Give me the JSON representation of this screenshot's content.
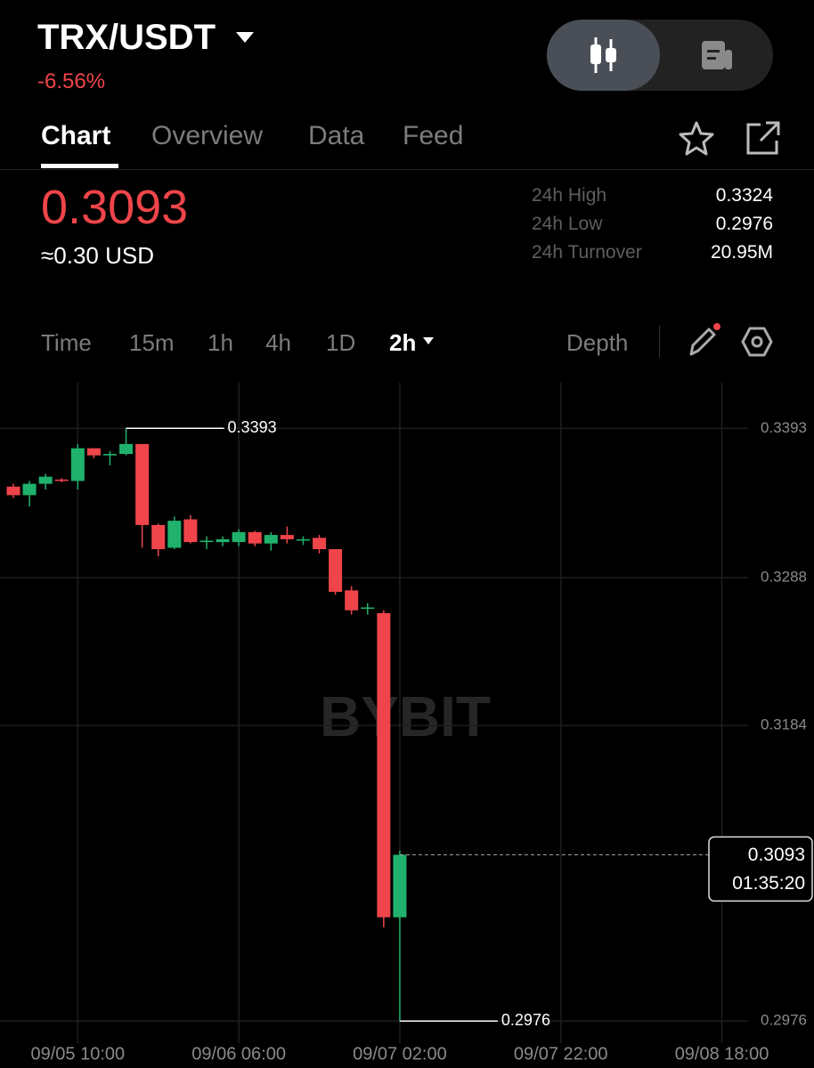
{
  "header": {
    "pair": "TRX/USDT",
    "change": "-6.56%"
  },
  "tabs": [
    "Chart",
    "Overview",
    "Data",
    "Feed"
  ],
  "ticker": {
    "price": "0.3093",
    "usd": "≈0.30 USD",
    "stats": [
      {
        "label": "24h High",
        "value": "0.3324"
      },
      {
        "label": "24h Low",
        "value": "0.2976"
      },
      {
        "label": "24h Turnover",
        "value": "20.95M"
      }
    ]
  },
  "toolbar": {
    "intervals": [
      "Time",
      "15m",
      "1h",
      "4h",
      "1D"
    ],
    "active": "2h",
    "depth": "Depth"
  },
  "chart_data": {
    "type": "candlestick",
    "watermark": "BYBIT",
    "categories": [
      null,
      null,
      null,
      null,
      "09/05 10:00",
      null,
      null,
      null,
      null,
      null,
      null,
      null,
      null,
      null,
      "09/06 06:00",
      null,
      null,
      null,
      null,
      null,
      null,
      null,
      null,
      null,
      "09/07 02:00",
      null,
      null,
      null,
      null,
      null,
      null,
      null,
      null,
      null,
      "09/07 22:00",
      null,
      null,
      null,
      null,
      null,
      null,
      null,
      null,
      null,
      "09/08 18:00"
    ],
    "open": [
      0.3352,
      0.3346,
      0.3354,
      0.3357,
      0.3356,
      0.3379,
      0.3374,
      0.3375,
      0.3382,
      0.3325,
      0.3309,
      0.3329,
      0.3313,
      0.3313,
      0.3313,
      0.332,
      0.3312,
      0.3318,
      0.3314,
      0.3316,
      0.3308,
      0.3279,
      0.3266,
      0.3263,
      0.3049,
      null,
      null,
      null,
      null,
      null,
      null,
      null,
      null,
      null,
      null,
      null,
      null,
      null,
      null,
      null,
      null,
      null,
      null,
      null,
      null
    ],
    "high": [
      0.3354,
      0.3356,
      0.3361,
      0.3358,
      0.3382,
      0.3379,
      0.3377,
      0.3393,
      0.3382,
      0.3326,
      0.3331,
      0.3332,
      0.3317,
      0.3317,
      0.3322,
      0.3321,
      0.332,
      0.3324,
      0.3317,
      0.3318,
      0.3308,
      0.3282,
      0.327,
      0.3265,
      0.3096,
      null,
      null,
      null,
      null,
      null,
      null,
      null,
      null,
      null,
      null,
      null,
      null,
      null,
      null,
      null,
      null,
      null,
      null,
      null,
      null
    ],
    "low": [
      0.3344,
      0.3338,
      0.335,
      0.3355,
      0.335,
      0.3372,
      0.3367,
      0.3374,
      0.3309,
      0.3303,
      0.3308,
      0.3312,
      0.3308,
      0.331,
      0.331,
      0.331,
      0.3307,
      0.3312,
      0.3311,
      0.3305,
      0.3276,
      0.3262,
      0.3262,
      0.3042,
      0.2976,
      null,
      null,
      null,
      null,
      null,
      null,
      null,
      null,
      null,
      null,
      null,
      null,
      null,
      null,
      null,
      null,
      null,
      null,
      null,
      null
    ],
    "close": [
      0.3346,
      0.3354,
      0.3359,
      0.3356,
      0.3379,
      0.3374,
      0.3375,
      0.3382,
      0.3325,
      0.3308,
      0.3328,
      0.3313,
      0.3314,
      0.3315,
      0.332,
      0.3312,
      0.3318,
      0.3315,
      0.3315,
      0.3308,
      0.3278,
      0.3265,
      0.3267,
      0.3049,
      0.3093,
      null,
      null,
      null,
      null,
      null,
      null,
      null,
      null,
      null,
      null,
      null,
      null,
      null,
      null,
      null,
      null,
      null,
      null,
      null,
      null
    ],
    "up_color": "#20b26c",
    "down_color": "#ef454a",
    "ylim": [
      0.2963,
      0.3422
    ],
    "yticks": [
      0.2976,
      0.3184,
      0.3288,
      0.3393
    ],
    "grid": true,
    "countdown": "01:35:20"
  }
}
